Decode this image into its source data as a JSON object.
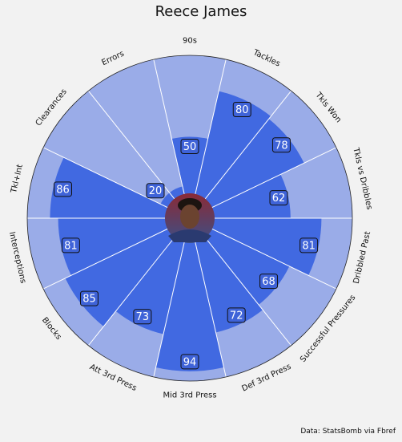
{
  "chart_data": {
    "type": "polar-bar",
    "title": "Reece James",
    "source": "Data: StatsBomb via Fbref",
    "categories": [
      "90s",
      "Tackles",
      "Tkls Won",
      "Tkls vs Dribbles",
      "Dribbled Past",
      "Successful Pressures",
      "Def 3rd Press",
      "Mid 3rd Press",
      "Att 3rd Press",
      "Blocks",
      "Interceptions",
      "Tkl+Int",
      "Clearances",
      "Errors"
    ],
    "values": [
      50,
      80,
      78,
      62,
      81,
      68,
      72,
      94,
      73,
      85,
      81,
      86,
      20,
      20
    ],
    "value_labels": [
      "50",
      "80",
      "78",
      "62",
      "81",
      "68",
      "72",
      "94",
      "73",
      "85",
      "81",
      "86",
      "20",
      ""
    ],
    "rlim": [
      0,
      100
    ],
    "colors": {
      "value": "#4169e1",
      "background": "#9aace8",
      "value_box": "#3f63d8",
      "photo_top": "#8a2a36",
      "photo_bottom": "#3c4f86"
    }
  },
  "photo": {
    "icon": "player-photo"
  }
}
